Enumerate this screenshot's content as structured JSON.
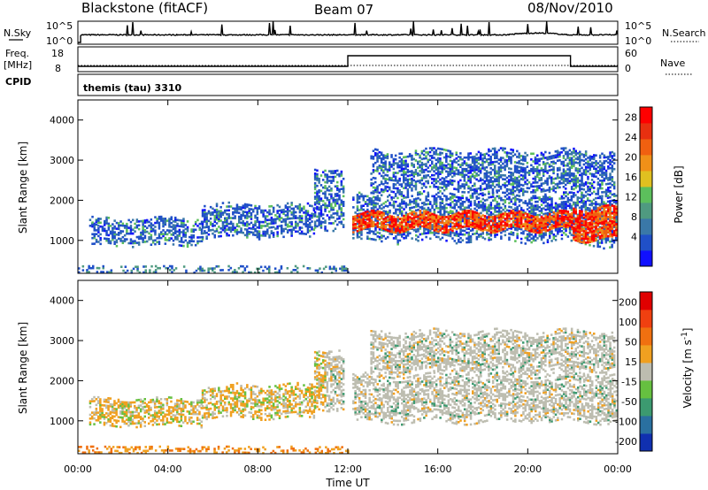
{
  "header": {
    "station": "Blackstone (fitACF)",
    "beam": "Beam 07",
    "date": "08/Nov/2010"
  },
  "strips": {
    "nsky": {
      "label": "N.Sky",
      "ticks": [
        "10^5",
        "10^0"
      ],
      "right_label": "N.Search",
      "right_ticks": [
        "10^5",
        "10^0"
      ]
    },
    "freq": {
      "label_lines": [
        "Freq.",
        "[MHz]"
      ],
      "ticks": [
        "18",
        "8"
      ],
      "right_label": "Nave",
      "right_ticks": [
        "60",
        "0"
      ]
    },
    "cpid": {
      "label": "CPID",
      "text": "themis (tau) 3310"
    }
  },
  "chart_data": [
    {
      "type": "heatmap",
      "panel": "power",
      "ylabel": "Slant Range [km]",
      "ylim": [
        180,
        4500
      ],
      "yticks": [
        1000,
        2000,
        3000,
        4000
      ],
      "xlim": [
        0,
        24
      ],
      "colorbar": {
        "label": "Power [dB]",
        "tick_labels": [
          "4",
          "8",
          "12",
          "16",
          "20",
          "24",
          "28"
        ],
        "colors": [
          "#1010ff",
          "#2050c8",
          "#3a78a8",
          "#4f9a80",
          "#5cbf5c",
          "#e0c020",
          "#f09018",
          "#f06010",
          "#e83010",
          "#ff0000"
        ]
      },
      "bands": [
        {
          "t0": 0.5,
          "t1": 1.0,
          "r0": 1330,
          "r1": 1530
        },
        {
          "t0": 0.6,
          "t1": 5.5,
          "r0": 850,
          "r1": 1550
        },
        {
          "t0": 5.5,
          "t1": 10.5,
          "r0": 1050,
          "r1": 1900
        },
        {
          "t0": 10.5,
          "t1": 11.8,
          "r0": 1300,
          "r1": 2800
        },
        {
          "t0": 12.2,
          "t1": 21.9,
          "r0": 950,
          "r1": 2150
        },
        {
          "t0": 13.0,
          "t1": 23.8,
          "r0": 2100,
          "r1": 3250
        },
        {
          "t0": 21.9,
          "t1": 23.9,
          "r0": 850,
          "r1": 2150
        },
        {
          "t0": 0.0,
          "t1": 12.0,
          "r0": 180,
          "r1": 330
        }
      ],
      "core": [
        {
          "t0": 12.2,
          "t1": 22.0,
          "r0": 1250,
          "r1": 1650
        },
        {
          "t0": 22.0,
          "t1": 23.9,
          "r0": 1000,
          "r1": 1800
        }
      ]
    },
    {
      "type": "heatmap",
      "panel": "velocity",
      "ylabel": "Slant Range [km]",
      "ylim": [
        180,
        4500
      ],
      "yticks": [
        1000,
        2000,
        3000,
        4000
      ],
      "xlim": [
        0,
        24
      ],
      "colorbar": {
        "label": "Velocity [m s^-1]",
        "tick_labels": [
          "200",
          "100",
          "50",
          "15",
          "-15",
          "-50",
          "-100",
          "-200"
        ],
        "colors": [
          "#1030b0",
          "#2a70a0",
          "#3c9a70",
          "#66c040",
          "#bdbdb0",
          "#f0a020",
          "#f07010",
          "#f04010",
          "#e00000"
        ]
      },
      "bands": [
        {
          "t0": 0.5,
          "t1": 5.5,
          "r0": 850,
          "r1": 1550
        },
        {
          "t0": 5.5,
          "t1": 10.5,
          "r0": 1050,
          "r1": 1900
        },
        {
          "t0": 10.5,
          "t1": 11.8,
          "r0": 1300,
          "r1": 2800
        },
        {
          "t0": 12.2,
          "t1": 23.9,
          "r0": 950,
          "r1": 2150
        },
        {
          "t0": 13.0,
          "t1": 23.8,
          "r0": 2100,
          "r1": 3250
        },
        {
          "t0": 0.0,
          "t1": 12.0,
          "r0": 180,
          "r1": 330
        }
      ]
    }
  ],
  "xaxis": {
    "label": "Time UT",
    "ticks": [
      0,
      4,
      8,
      12,
      16,
      20,
      24
    ],
    "tick_labels": [
      "00:00",
      "04:00",
      "08:00",
      "12:00",
      "16:00",
      "20:00",
      "00:00"
    ]
  }
}
